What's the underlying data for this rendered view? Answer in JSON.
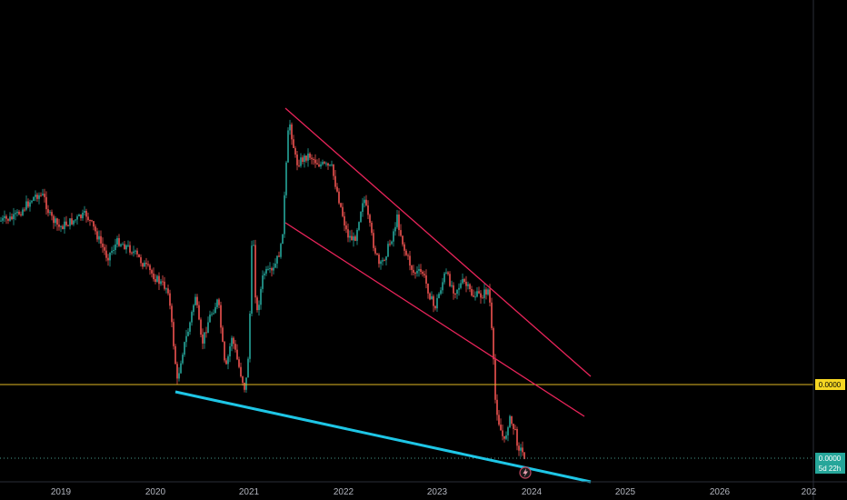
{
  "chart_data": {
    "type": "candlestick",
    "title": "",
    "x_ticks": [
      "2019",
      "2020",
      "2021",
      "2022",
      "2023",
      "2024",
      "2025",
      "2026",
      "202"
    ],
    "price_labels": {
      "horizontal_level": "0.0000",
      "last_price": "0.0000",
      "countdown": "5d 22h"
    },
    "trendlines": [
      {
        "name": "upper-channel-line",
        "color": "#e8245a",
        "from": [
          "2021-06",
          "1.00"
        ],
        "to": [
          "2024-09",
          "0.30"
        ]
      },
      {
        "name": "lower-channel-line",
        "color": "#e8245a",
        "from": [
          "2021-05",
          "0.50"
        ],
        "to": [
          "2024-09",
          "0.00"
        ]
      },
      {
        "name": "support-trendline",
        "color": "#1ec6e6",
        "from": [
          "2020-03",
          "0.00"
        ],
        "to": [
          "2024-10",
          "-0.40"
        ]
      }
    ],
    "horizontal_level_color": "#e0b923",
    "up_color": "#26a69a",
    "down_color": "#ef5350",
    "grid": false
  },
  "icons": {
    "flash": "lightning-icon"
  }
}
